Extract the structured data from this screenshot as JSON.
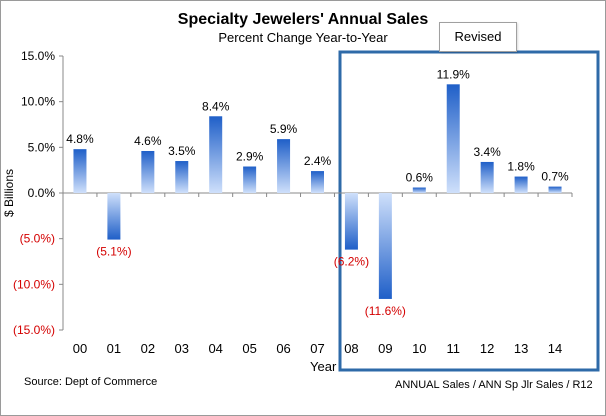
{
  "title": "Specialty Jewelers' Annual Sales",
  "subtitle": "Percent Change Year-to-Year",
  "revised_label": "Revised",
  "source_note": "Source:  Dept of Commerce",
  "series_note": "ANNUAL Sales / ANN Sp Jlr Sales / R12",
  "colors": {
    "bar_top": "#1f5fc8",
    "bar_bottom": "#cfe0fb",
    "negative_label": "#d40000",
    "highlight_box": "#2e6aa8",
    "axis": "#888888"
  },
  "chart_data": {
    "type": "bar",
    "title": "Specialty Jewelers' Annual Sales",
    "subtitle": "Percent Change Year-to-Year",
    "xlabel": "Year",
    "ylabel": "$ Billions",
    "ylim": [
      -15,
      15
    ],
    "yticks": [
      15,
      10,
      5,
      0,
      -5,
      -10,
      -15
    ],
    "ytick_labels": [
      "15.0%",
      "10.0%",
      "5.0%",
      "0.0%",
      "(5.0%)",
      "(10.0%)",
      "(15.0%)"
    ],
    "categories": [
      "00",
      "01",
      "02",
      "03",
      "04",
      "05",
      "06",
      "07",
      "08",
      "09",
      "10",
      "11",
      "12",
      "13",
      "14"
    ],
    "values": [
      4.8,
      -5.1,
      4.6,
      3.5,
      8.4,
      2.9,
      5.9,
      2.4,
      -6.2,
      -11.6,
      0.6,
      11.9,
      3.4,
      1.8,
      0.7
    ],
    "data_labels": [
      "4.8%",
      "(5.1%)",
      "4.6%",
      "3.5%",
      "8.4%",
      "2.9%",
      "5.9%",
      "2.4%",
      "(6.2%)",
      "(11.6%)",
      "0.6%",
      "11.9%",
      "3.4%",
      "1.8%",
      "0.7%"
    ],
    "highlight_range": [
      "08",
      "14"
    ],
    "highlight_label": "Revised",
    "grid": false,
    "legend": "none"
  }
}
